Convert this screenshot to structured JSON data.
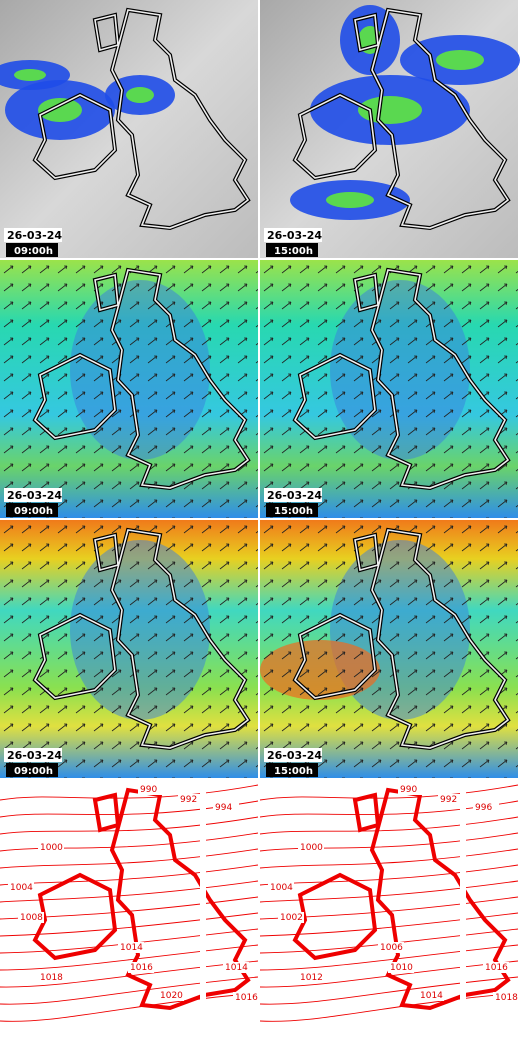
{
  "panels": [
    {
      "date": "26-03-24",
      "time": "09:00h"
    },
    {
      "date": "26-03-24",
      "time": "15:00h"
    },
    {
      "date": "26-03-24",
      "time": "09:00h"
    },
    {
      "date": "26-03-24",
      "time": "15:00h"
    },
    {
      "date": "26-03-24",
      "time": "09:00h"
    },
    {
      "date": "26-03-24",
      "time": "15:00h"
    }
  ],
  "isobars": {
    "left": [
      "990",
      "992",
      "994",
      "1000",
      "1004",
      "1008",
      "1014",
      "1016",
      "1018",
      "1020",
      "1014",
      "1016"
    ],
    "right": [
      "990",
      "992",
      "996",
      "1000",
      "1004",
      "1002",
      "1006",
      "1010",
      "1012",
      "1014",
      "1016",
      "1018"
    ]
  }
}
